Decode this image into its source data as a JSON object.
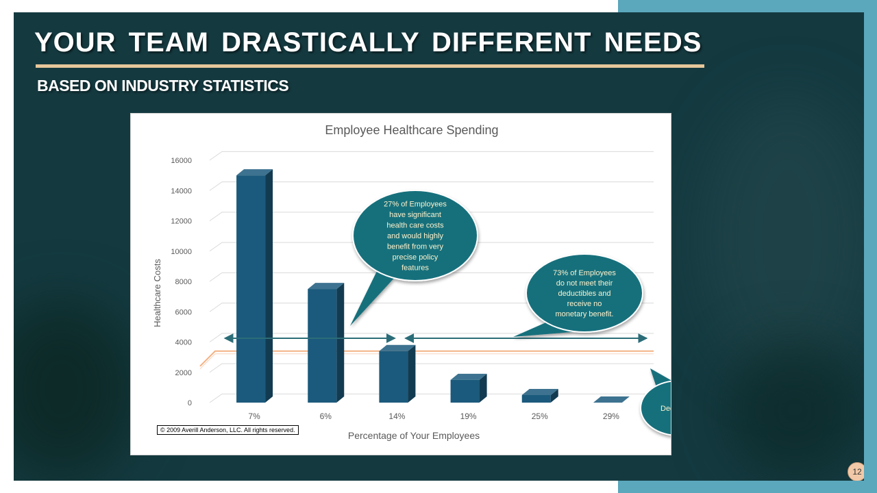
{
  "slide": {
    "title": "YOUR TEAM DRASTICALLY DIFFERENT NEEDS",
    "subtitle": "BASED ON INDUSTRY STATISTICS",
    "page_number": "12",
    "copyright": "© 2009 Averill Anderson, LLC. All rights reserved."
  },
  "chart_data": {
    "type": "bar",
    "title": "Employee Healthcare Spending",
    "xlabel": "Percentage of Your Employees",
    "ylabel": "Healthcare Costs",
    "categories": [
      "7%",
      "6%",
      "14%",
      "19%",
      "25%",
      "29%"
    ],
    "values": [
      15000,
      7500,
      3400,
      1500,
      500,
      0
    ],
    "ylim": [
      0,
      16000
    ],
    "yticks": [
      "0",
      "2000",
      "4000",
      "6000",
      "8000",
      "10000",
      "12000",
      "14000",
      "16000"
    ],
    "deductible_line": 3400,
    "grid": true,
    "bar_color": "#1b5a7c",
    "annotations": [
      {
        "text": [
          "27% of Employees",
          "have significant",
          "health care costs",
          "and would highly",
          "benefit from very",
          "precise policy",
          "features"
        ],
        "spans": [
          0,
          2
        ]
      },
      {
        "text": [
          "73% of Employees",
          "do not meet their",
          "deductibles and",
          "receive no",
          "monetary benefit."
        ],
        "spans": [
          3,
          5
        ]
      },
      {
        "text": [
          "Deductible"
        ]
      }
    ]
  }
}
